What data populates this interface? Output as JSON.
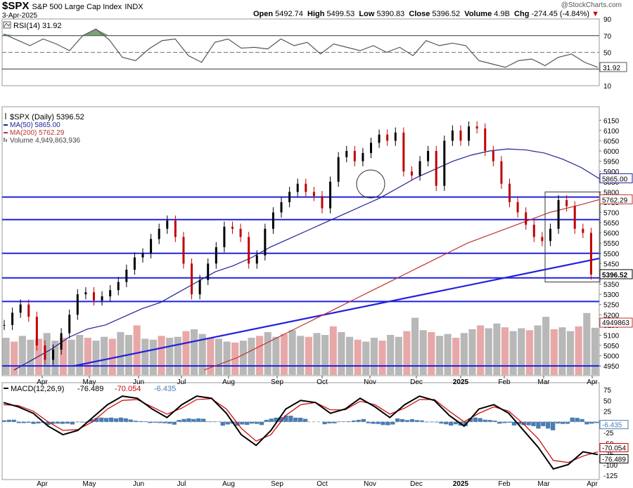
{
  "header": {
    "symbol": "$SPX",
    "name": "S&P 500 Large Cap Index",
    "exchange": "INDX",
    "date": "3-Apr-2025",
    "open_label": "Open",
    "open": "5492.74",
    "high_label": "High",
    "high": "5499.53",
    "low_label": "Low",
    "low": "5390.83",
    "close_label": "Close",
    "close": "5396.52",
    "volume_label": "Volume",
    "volume": "4.9B",
    "chg_label": "Chg",
    "chg": "-274.45 (-4.84%)",
    "chg_icon": "down-triangle-icon",
    "brand": "@StockCharts.com"
  },
  "chart_data": [
    {
      "type": "line",
      "title": "RSI(14) 31.92",
      "ylim": [
        10,
        90
      ],
      "ticks": [
        "90",
        "70",
        "50",
        "30",
        "10"
      ],
      "reference_lines": [
        70,
        50,
        30
      ],
      "last_value_label": "31.92",
      "series": [
        {
          "name": "RSI(14)",
          "values": [
            72,
            65,
            58,
            66,
            60,
            52,
            70,
            78,
            65,
            44,
            40,
            54,
            64,
            66,
            46,
            38,
            62,
            66,
            55,
            56,
            54,
            66,
            58,
            62,
            48,
            60,
            56,
            52,
            58,
            50,
            56,
            46,
            64,
            58,
            61,
            58,
            40,
            36,
            32,
            40,
            42,
            34,
            44,
            48,
            38,
            31.92
          ]
        }
      ]
    },
    {
      "type": "line",
      "title": "$SPX (Daily) 5396.52",
      "x_labels": [
        "Apr",
        "May",
        "Jun",
        "Jul",
        "Aug",
        "Sep",
        "Oct",
        "Nov",
        "Dec",
        "2025",
        "Feb",
        "Mar",
        "Apr"
      ],
      "ylim": [
        4930,
        6175
      ],
      "y_ticks": [
        "6150",
        "6100",
        "6050",
        "6000",
        "5950",
        "5900",
        "5850",
        "5800",
        "5750",
        "5700",
        "5650",
        "5600",
        "5550",
        "5500",
        "5450",
        "5400",
        "5350",
        "5300",
        "5250",
        "5200",
        "5150",
        "5100",
        "5050",
        "5000",
        "4950"
      ],
      "legend": [
        {
          "label": "$SPX (Daily) 5396.52",
          "color": "#000000",
          "icon": "price-bars-icon"
        },
        {
          "label": "MA(50) 5865.00",
          "color": "#1f1f9a",
          "icon": "line-icon"
        },
        {
          "label": "MA(200) 5762.29",
          "color": "#c03030",
          "icon": "line-icon"
        },
        {
          "label": "Volume 4,949,863,936",
          "color": "#888888",
          "icon": "volume-bars-icon"
        }
      ],
      "last_value_labels": {
        "ma50": "5865.00",
        "ma200": "5762.29",
        "price": "5396.52",
        "volume": "4949863"
      },
      "horizontal_levels": [
        5775,
        5665,
        5500,
        5380,
        5265,
        4950
      ],
      "trendline": {
        "from": {
          "x": "Apr 19 2024",
          "y": 4950
        },
        "to": {
          "x": "Apr 3 2025",
          "y": 5475
        }
      },
      "series": [
        {
          "name": "$SPX",
          "color": "#000000",
          "values": [
            5150,
            5210,
            5250,
            5190,
            5050,
            4980,
            5030,
            5110,
            5200,
            5300,
            5310,
            5270,
            5290,
            5320,
            5360,
            5420,
            5480,
            5500,
            5570,
            5620,
            5660,
            5580,
            5450,
            5300,
            5370,
            5450,
            5530,
            5630,
            5620,
            5580,
            5450,
            5490,
            5620,
            5700,
            5750,
            5800,
            5840,
            5800,
            5780,
            5720,
            5850,
            5970,
            6000,
            5950,
            5990,
            6040,
            6080,
            6050,
            6090,
            5900,
            5880,
            5950,
            6000,
            5830,
            6050,
            6100,
            6050,
            6120,
            6110,
            6000,
            5950,
            5840,
            5750,
            5700,
            5640,
            5580,
            5560,
            5620,
            5760,
            5730,
            5620,
            5600,
            5396.52
          ]
        },
        {
          "name": "MA(50)",
          "color": "#1f1f9a",
          "values": [
            4930,
            4980,
            5030,
            5090,
            5130,
            5150,
            5190,
            5230,
            5260,
            5310,
            5360,
            5410,
            5440,
            5480,
            5530,
            5570,
            5610,
            5650,
            5690,
            5730,
            5770,
            5820,
            5870,
            5910,
            5950,
            5980,
            6000,
            6010,
            6005,
            5990,
            5960,
            5920,
            5865
          ]
        },
        {
          "name": "MA(200)",
          "color": "#c03030",
          "values": [
            4930,
            4960,
            4990,
            5030,
            5070,
            5110,
            5150,
            5190,
            5230,
            5270,
            5310,
            5350,
            5390,
            5430,
            5470,
            5510,
            5550,
            5580,
            5610,
            5640,
            5670,
            5700,
            5720,
            5740,
            5762.29
          ]
        },
        {
          "name": "Volume",
          "color": "#888888",
          "values": [
            3.9,
            3.5,
            4.1,
            3.7,
            3.8,
            4.4,
            3.6,
            3.9,
            3.7,
            4.2,
            3.9,
            3.6,
            4.0,
            3.8,
            4.5,
            4.2,
            5.2,
            3.8,
            3.7,
            4.1,
            3.9,
            4.0,
            4.6,
            4.8,
            4.3,
            3.9,
            3.8,
            3.5,
            3.4,
            3.6,
            3.9,
            4.1,
            4.5,
            4.0,
            4.3,
            4.7,
            4.1,
            4.0,
            4.4,
            4.2,
            5.1,
            4.5,
            4.0,
            3.7,
            3.5,
            3.9,
            3.6,
            4.2,
            4.0,
            4.6,
            6.0,
            4.7,
            4.5,
            4.1,
            4.3,
            3.9,
            4.4,
            4.8,
            5.2,
            4.9,
            5.4,
            5.0,
            4.6,
            4.9,
            4.7,
            5.2,
            6.1,
            4.8,
            5.0,
            4.6,
            5.1,
            6.5,
            4.95
          ]
        }
      ]
    },
    {
      "type": "line",
      "title": "MACD(12,26,9)",
      "title_values": [
        "-76.489",
        "-70.054",
        "-6.435"
      ],
      "x_labels": [
        "Apr",
        "May",
        "Jun",
        "Jul",
        "Aug",
        "Sep",
        "Oct",
        "Nov",
        "Dec",
        "2025",
        "Feb",
        "Mar",
        "Apr"
      ],
      "ylim": [
        -125,
        75
      ],
      "y_ticks": [
        "75",
        "50",
        "25",
        "0",
        "-25",
        "-50",
        "-75",
        "-100",
        "-125"
      ],
      "last_value_labels": {
        "histogram": "-6.435",
        "signal": "-70.054",
        "macd": "-76.489"
      },
      "series": [
        {
          "name": "MACD",
          "color": "#000000",
          "values": [
            45,
            35,
            20,
            -10,
            -30,
            -20,
            10,
            40,
            60,
            55,
            30,
            10,
            40,
            60,
            55,
            20,
            -30,
            -55,
            -20,
            30,
            50,
            45,
            20,
            30,
            55,
            35,
            10,
            40,
            60,
            50,
            15,
            -10,
            30,
            40,
            20,
            -20,
            -60,
            -110,
            -100,
            -70,
            -76.489
          ]
        },
        {
          "name": "Signal",
          "color": "#cc0000",
          "values": [
            40,
            38,
            25,
            0,
            -20,
            -18,
            0,
            30,
            50,
            52,
            35,
            18,
            32,
            52,
            54,
            30,
            -15,
            -45,
            -30,
            15,
            40,
            45,
            28,
            28,
            48,
            40,
            18,
            32,
            52,
            52,
            25,
            0,
            20,
            35,
            25,
            -5,
            -40,
            -90,
            -95,
            -80,
            -70.054
          ]
        },
        {
          "name": "Histogram",
          "color": "#4a7cb0",
          "values": [
            5,
            -3,
            -5,
            -10,
            -10,
            -2,
            10,
            10,
            10,
            3,
            -5,
            -8,
            8,
            8,
            1,
            -10,
            -15,
            -10,
            10,
            15,
            10,
            0,
            -8,
            2,
            7,
            -5,
            -8,
            8,
            8,
            -2,
            -10,
            -10,
            10,
            5,
            -5,
            -15,
            -20,
            -20,
            -5,
            10,
            -6.435
          ]
        }
      ]
    }
  ]
}
